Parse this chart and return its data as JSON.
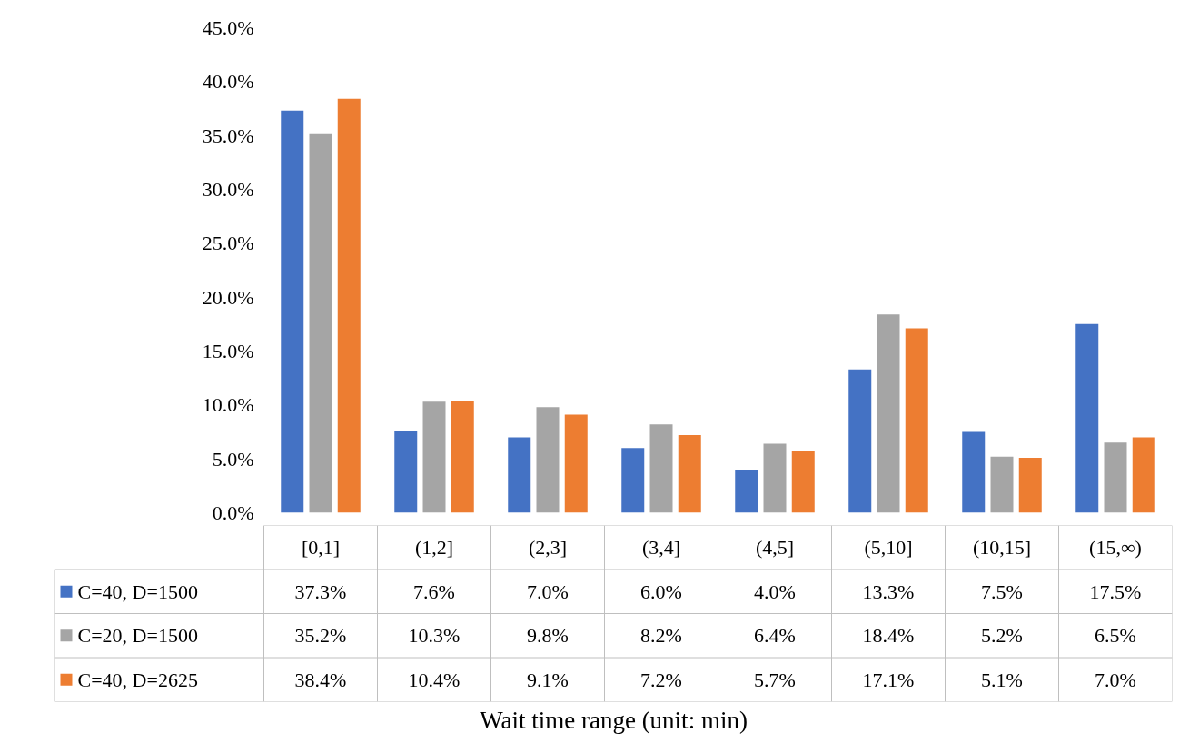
{
  "chart_data": {
    "type": "bar",
    "annotations": [
      "Wait time range (unit: min)"
    ],
    "categories": [
      "[0,1]",
      "(1,2]",
      "(2,3]",
      "(3,4]",
      "(4,5]",
      "(5,10]",
      "(10,15]",
      "(15,∞)"
    ],
    "series": [
      {
        "name": "C=40, D=1500",
        "color": "#4472c4",
        "values": [
          37.3,
          7.6,
          7.0,
          6.0,
          4.0,
          13.3,
          7.5,
          17.5
        ],
        "value_labels": [
          "37.3%",
          "7.6%",
          "7.0%",
          "6.0%",
          "4.0%",
          "13.3%",
          "7.5%",
          "17.5%"
        ]
      },
      {
        "name": "C=20, D=1500",
        "color": "#a5a5a5",
        "values": [
          35.2,
          10.3,
          9.8,
          8.2,
          6.4,
          18.4,
          5.2,
          6.5
        ],
        "value_labels": [
          "35.2%",
          "10.3%",
          "9.8%",
          "8.2%",
          "6.4%",
          "18.4%",
          "5.2%",
          "6.5%"
        ]
      },
      {
        "name": "C=40, D=2625",
        "color": "#ed7d31",
        "values": [
          38.4,
          10.4,
          9.1,
          7.2,
          5.7,
          17.1,
          5.1,
          7.0
        ],
        "value_labels": [
          "38.4%",
          "10.4%",
          "9.1%",
          "7.2%",
          "5.7%",
          "17.1%",
          "5.1%",
          "7.0%"
        ]
      }
    ],
    "ylim": [
      0,
      45
    ],
    "yticks": [
      {
        "value": 0,
        "label": "0.0%"
      },
      {
        "value": 5,
        "label": "5.0%"
      },
      {
        "value": 10,
        "label": "10.0%"
      },
      {
        "value": 15,
        "label": "15.0%"
      },
      {
        "value": 20,
        "label": "20.0%"
      },
      {
        "value": 25,
        "label": "25.0%"
      },
      {
        "value": 30,
        "label": "30.0%"
      },
      {
        "value": 35,
        "label": "35.0%"
      },
      {
        "value": 40,
        "label": "40.0%"
      },
      {
        "value": 45,
        "label": "45.0%"
      }
    ],
    "grid": false,
    "legend": "bottom"
  }
}
